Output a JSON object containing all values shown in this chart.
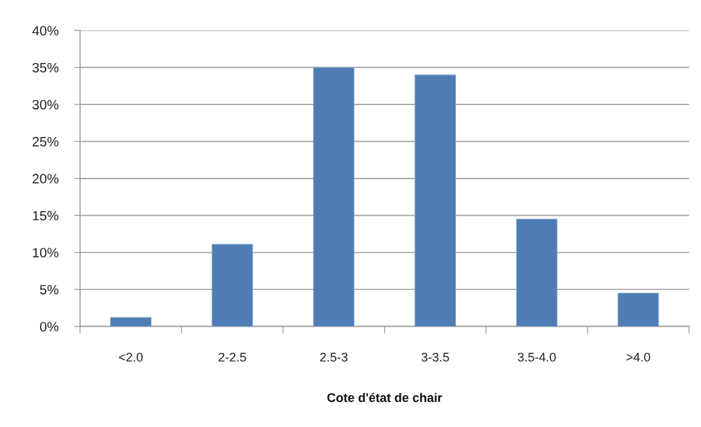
{
  "chart_data": {
    "type": "bar",
    "xlabel": "Cote d'état de chair",
    "categories": [
      "<2.0",
      "2-2.5",
      "2.5-3",
      "3-3.5",
      "3.5-4.0",
      ">4.0"
    ],
    "values": [
      1.2,
      11.1,
      35,
      34,
      14.5,
      4.5
    ],
    "color": "#4f7cb3",
    "ylim": [
      0,
      40
    ],
    "yticks": [
      {
        "value": 0,
        "label": "0%"
      },
      {
        "value": 5,
        "label": "5%"
      },
      {
        "value": 10,
        "label": "10%"
      },
      {
        "value": 15,
        "label": "15%"
      },
      {
        "value": 20,
        "label": "20%"
      },
      {
        "value": 25,
        "label": "25%"
      },
      {
        "value": 30,
        "label": "30%"
      },
      {
        "value": 35,
        "label": "35%"
      },
      {
        "value": 40,
        "label": "40%"
      }
    ],
    "grid": "y",
    "legend": false
  }
}
